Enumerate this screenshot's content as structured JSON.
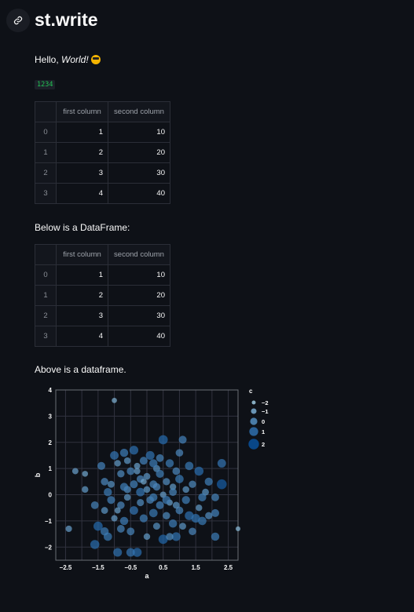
{
  "page": {
    "title": "st.write"
  },
  "hello": {
    "prefix": "Hello, ",
    "emphasis": "World!",
    "emoji": "sunglasses-emoji"
  },
  "code_value": "1234",
  "table1": {
    "columns": [
      "first column",
      "second column"
    ],
    "rows": [
      {
        "index": "0",
        "first": "1",
        "second": "10"
      },
      {
        "index": "1",
        "first": "2",
        "second": "20"
      },
      {
        "index": "2",
        "first": "3",
        "second": "30"
      },
      {
        "index": "3",
        "first": "4",
        "second": "40"
      }
    ]
  },
  "text_below": "Below is a DataFrame:",
  "table2": {
    "columns": [
      "first column",
      "second column"
    ],
    "rows": [
      {
        "index": "0",
        "first": "1",
        "second": "10"
      },
      {
        "index": "1",
        "first": "2",
        "second": "20"
      },
      {
        "index": "2",
        "first": "3",
        "second": "30"
      },
      {
        "index": "3",
        "first": "4",
        "second": "40"
      }
    ]
  },
  "text_above": "Above is a dataframe.",
  "chart_data": {
    "type": "scatter",
    "xlabel": "a",
    "ylabel": "b",
    "xlim": [
      -2.8,
      2.8
    ],
    "ylim": [
      -2.5,
      4
    ],
    "x_ticks": [
      "−2.5",
      "−1.5",
      "−0.5",
      "0.5",
      "1.5",
      "2.5"
    ],
    "y_ticks": [
      "−2",
      "−1",
      "0",
      "1",
      "2",
      "3",
      "4"
    ],
    "grid": true,
    "legend": {
      "title": "c",
      "placement": "right",
      "entries": [
        {
          "label": "−2",
          "c": -2
        },
        {
          "label": "−1",
          "c": -1
        },
        {
          "label": "0",
          "c": 0
        },
        {
          "label": "1",
          "c": 1
        },
        {
          "label": "2",
          "c": 2
        }
      ]
    },
    "points": [
      [
        -1.0,
        3.6,
        -1.2
      ],
      [
        -2.2,
        0.9,
        -0.6
      ],
      [
        -1.9,
        0.8,
        -0.8
      ],
      [
        -2.4,
        -1.3,
        -0.5
      ],
      [
        2.8,
        -1.3,
        -1.5
      ],
      [
        -1.4,
        1.1,
        0.4
      ],
      [
        -1.3,
        0.5,
        0.2
      ],
      [
        -1.0,
        1.5,
        0.8
      ],
      [
        -0.9,
        1.2,
        -0.4
      ],
      [
        -0.8,
        0.8,
        0.1
      ],
      [
        -0.7,
        1.6,
        0.6
      ],
      [
        -0.6,
        1.3,
        -0.3
      ],
      [
        -0.5,
        0.9,
        0.3
      ],
      [
        -0.4,
        1.7,
        1.0
      ],
      [
        -0.3,
        1.1,
        -0.6
      ],
      [
        -0.2,
        0.6,
        0.2
      ],
      [
        -0.1,
        1.3,
        0.4
      ],
      [
        0.0,
        0.7,
        -0.2
      ],
      [
        0.1,
        1.5,
        0.9
      ],
      [
        0.2,
        0.4,
        0.3
      ],
      [
        0.3,
        1.0,
        -0.1
      ],
      [
        0.4,
        0.8,
        0.5
      ],
      [
        0.5,
        2.1,
        1.2
      ],
      [
        0.6,
        0.5,
        0.0
      ],
      [
        0.7,
        1.2,
        0.6
      ],
      [
        0.8,
        0.3,
        -0.4
      ],
      [
        0.9,
        0.9,
        0.2
      ],
      [
        1.0,
        0.6,
        0.7
      ],
      [
        1.1,
        2.1,
        0.4
      ],
      [
        1.2,
        0.2,
        -0.3
      ],
      [
        1.4,
        0.4,
        0.1
      ],
      [
        1.6,
        0.9,
        1.1
      ],
      [
        1.8,
        0.1,
        -0.2
      ],
      [
        1.9,
        0.5,
        0.5
      ],
      [
        2.1,
        -0.1,
        0.3
      ],
      [
        2.3,
        1.2,
        0.8
      ],
      [
        2.3,
        0.4,
        1.6
      ],
      [
        -1.6,
        -0.4,
        0.3
      ],
      [
        -1.5,
        -1.2,
        1.2
      ],
      [
        -1.3,
        -0.6,
        -0.2
      ],
      [
        -1.2,
        -1.6,
        0.7
      ],
      [
        -1.1,
        -0.2,
        0.4
      ],
      [
        -1.0,
        -0.9,
        -0.5
      ],
      [
        -0.9,
        -2.2,
        0.9
      ],
      [
        -0.8,
        -0.4,
        0.2
      ],
      [
        -0.7,
        -1.0,
        0.6
      ],
      [
        -0.6,
        -0.1,
        -0.3
      ],
      [
        -0.5,
        -1.4,
        0.3
      ],
      [
        -0.4,
        -0.6,
        0.8
      ],
      [
        -0.3,
        -2.2,
        1.1
      ],
      [
        -0.2,
        -0.3,
        0.0
      ],
      [
        -0.1,
        -0.9,
        0.5
      ],
      [
        0.0,
        -1.6,
        -0.4
      ],
      [
        0.1,
        -0.2,
        0.2
      ],
      [
        0.2,
        -0.7,
        0.7
      ],
      [
        0.3,
        -1.2,
        -0.1
      ],
      [
        0.4,
        -0.4,
        0.4
      ],
      [
        0.5,
        -1.7,
        1.3
      ],
      [
        0.6,
        -0.8,
        0.1
      ],
      [
        0.7,
        -0.3,
        -0.6
      ],
      [
        0.8,
        -1.1,
        0.6
      ],
      [
        0.9,
        -1.6,
        0.9
      ],
      [
        1.0,
        -0.6,
        0.3
      ],
      [
        1.1,
        -1.2,
        -0.2
      ],
      [
        1.2,
        -0.2,
        0.5
      ],
      [
        1.3,
        -0.8,
        1.0
      ],
      [
        1.4,
        -1.4,
        0.2
      ],
      [
        1.6,
        -0.5,
        -0.4
      ],
      [
        1.7,
        -1.0,
        0.7
      ],
      [
        1.9,
        -0.8,
        0.0
      ],
      [
        2.1,
        -0.7,
        0.4
      ],
      [
        2.1,
        -1.6,
        0.6
      ],
      [
        -1.6,
        -1.9,
        1.1
      ],
      [
        -1.3,
        -1.4,
        0.6
      ],
      [
        -0.9,
        -0.6,
        -0.6
      ],
      [
        -0.6,
        0.2,
        0.0
      ],
      [
        -0.4,
        0.4,
        0.4
      ],
      [
        -0.2,
        0.1,
        0.8
      ],
      [
        0.0,
        0.2,
        -0.3
      ],
      [
        0.2,
        -0.1,
        0.5
      ],
      [
        0.3,
        0.3,
        0.2
      ],
      [
        0.5,
        0.0,
        -0.5
      ],
      [
        0.6,
        -0.2,
        0.6
      ],
      [
        0.8,
        0.1,
        0.3
      ],
      [
        -0.1,
        0.5,
        -0.8
      ],
      [
        -0.7,
        0.3,
        0.5
      ],
      [
        -1.1,
        0.4,
        -0.1
      ],
      [
        0.4,
        1.4,
        0.3
      ],
      [
        1.3,
        1.1,
        0.7
      ],
      [
        -0.5,
        -2.2,
        0.8
      ],
      [
        1.5,
        -0.9,
        0.9
      ],
      [
        -1.2,
        0.1,
        0.6
      ],
      [
        -1.9,
        0.2,
        -0.4
      ],
      [
        0.7,
        -1.6,
        0.1
      ],
      [
        1.0,
        1.6,
        0.2
      ],
      [
        -0.3,
        0.9,
        -0.5
      ],
      [
        0.2,
        1.2,
        0.6
      ],
      [
        -0.8,
        -1.3,
        0.3
      ],
      [
        0.9,
        -0.4,
        -0.2
      ],
      [
        1.7,
        -0.1,
        0.5
      ]
    ]
  }
}
